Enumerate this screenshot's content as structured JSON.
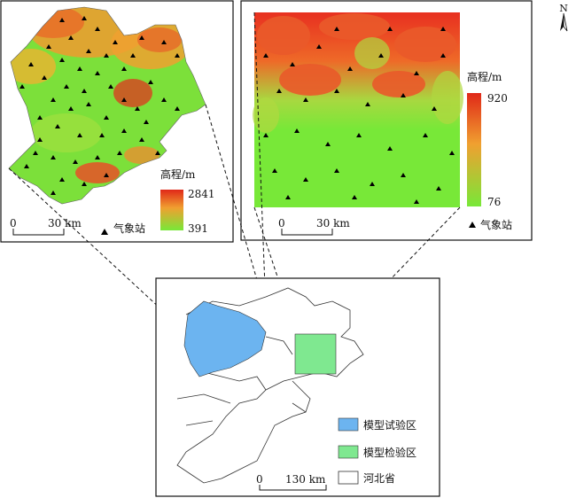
{
  "north_arrow": {
    "label": "N"
  },
  "left_panel": {
    "legend_title": "高程/m",
    "elev_max": "2841",
    "elev_min": "391",
    "scale_zero": "0",
    "scale_label": "30 km",
    "station_label": "气象站",
    "colors": {
      "high": "#e03020",
      "mid": "#f0a020",
      "low": "#70e030"
    }
  },
  "right_panel": {
    "legend_title": "高程/m",
    "elev_max": "920",
    "elev_min": "76",
    "scale_zero": "0",
    "scale_label": "30 km",
    "station_label": "气象站"
  },
  "bottom_panel": {
    "scale_zero": "0",
    "scale_label": "130 km",
    "legend": [
      {
        "label": "模型试验区",
        "color": "#6cb4f0"
      },
      {
        "label": "模型检验区",
        "color": "#7fe890"
      },
      {
        "label": "河北省",
        "color": "#ffffff"
      }
    ]
  }
}
